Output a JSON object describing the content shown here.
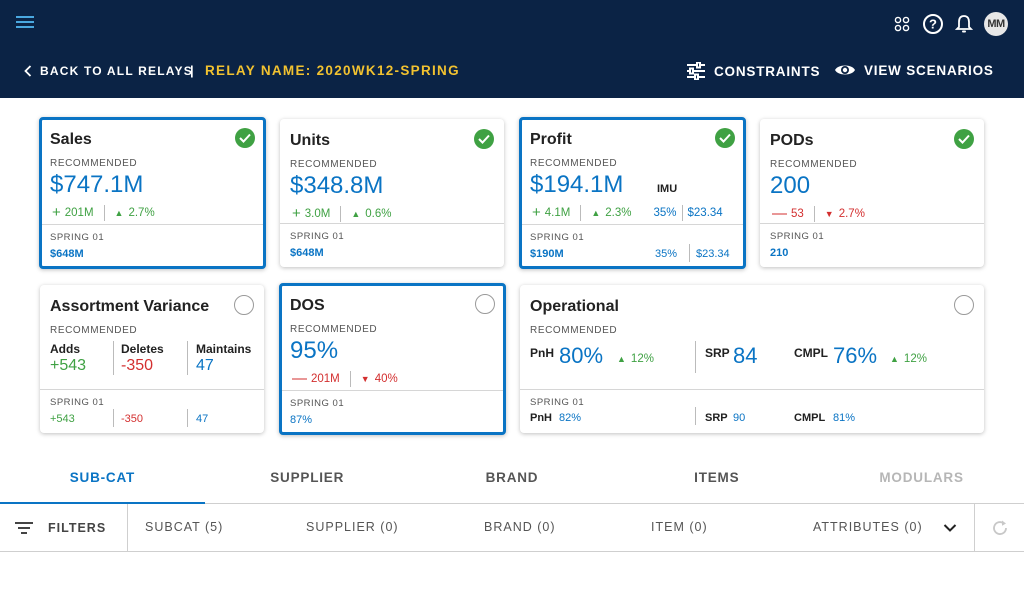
{
  "header": {
    "back_label": "BACK TO ALL RELAYS",
    "separator": "|",
    "relay_name": "RELAY NAME: 2020WK12-SPRING",
    "constraints_label": "CONSTRAINTS",
    "view_scenarios_label": "VIEW SCENARIOS",
    "avatar_initials": "MM"
  },
  "cards": {
    "sales": {
      "title": "Sales",
      "rec_label": "RECOMMENDED",
      "value": "$747.1M",
      "delta_abs": "201M",
      "delta_pct": "2.7%",
      "foot_label": "SPRING 01",
      "foot_value": "$648M",
      "selected": true,
      "checked": true
    },
    "units": {
      "title": "Units",
      "rec_label": "RECOMMENDED",
      "value": "$348.8M",
      "delta_abs": "3.0M",
      "delta_pct": "0.6%",
      "foot_label": "SPRING 01",
      "foot_value": "$648M",
      "selected": false,
      "checked": true
    },
    "profit": {
      "title": "Profit",
      "rec_label": "RECOMMENDED",
      "value": "$194.1M",
      "imu_label": "IMU",
      "delta_abs": "4.1M",
      "delta_pct": "2.3%",
      "imu_pct": "35%",
      "imu_value": "$23.34",
      "foot_label": "SPRING 01",
      "foot_value": "$190M",
      "foot_imu_pct": "35%",
      "foot_imu_value": "$23.34",
      "selected": true,
      "checked": true
    },
    "pods": {
      "title": "PODs",
      "rec_label": "RECOMMENDED",
      "value": "200",
      "delta_abs": "53",
      "delta_pct": "2.7%",
      "foot_label": "SPRING 01",
      "foot_value": "210",
      "selected": false,
      "checked": true
    },
    "assortment": {
      "title": "Assortment Variance",
      "rec_label": "RECOMMENDED",
      "adds_label": "Adds",
      "adds_value": "+543",
      "deletes_label": "Deletes",
      "deletes_value": "-350",
      "maintains_label": "Maintains",
      "maintains_value": "47",
      "foot_label": "SPRING 01",
      "foot_adds": "+543",
      "foot_deletes": "-350",
      "foot_maintains": "47",
      "selected": false,
      "checked": false
    },
    "dos": {
      "title": "DOS",
      "rec_label": "RECOMMENDED",
      "value": "95%",
      "delta_abs": "201M",
      "delta_pct": "40%",
      "foot_label": "SPRING 01",
      "foot_value": "87%",
      "selected": true,
      "checked": false
    },
    "operational": {
      "title": "Operational",
      "rec_label": "RECOMMENDED",
      "pnh_label": "PnH",
      "pnh_value": "80%",
      "pnh_delta": "12%",
      "srp_label": "SRP",
      "srp_value": "84",
      "cmpl_label": "CMPL",
      "cmpl_value": "76%",
      "cmpl_delta": "12%",
      "foot_label": "SPRING 01",
      "foot_pnh_label": "PnH",
      "foot_pnh_value": "82%",
      "foot_srp_label": "SRP",
      "foot_srp_value": "90",
      "foot_cmpl_label": "CMPL",
      "foot_cmpl_value": "81%",
      "selected": false,
      "checked": false
    }
  },
  "tabs": [
    {
      "label": "SUB-CAT",
      "state": "active"
    },
    {
      "label": "SUPPLIER",
      "state": "normal"
    },
    {
      "label": "BRAND",
      "state": "normal"
    },
    {
      "label": "ITEMS",
      "state": "normal"
    },
    {
      "label": "MODULARS",
      "state": "disabled"
    }
  ],
  "filters": {
    "label": "FILTERS",
    "subcat": "SUBCAT (5)",
    "supplier": "SUPPLIER (0)",
    "brand": "BRAND (0)",
    "item": "ITEM (0)",
    "attributes": "ATTRIBUTES (0)"
  },
  "colors": {
    "header_bg": "#0b2345",
    "accent": "#0a74c4",
    "relay_name": "#f2c230",
    "positive": "#3fa143",
    "negative": "#d32f2f"
  }
}
